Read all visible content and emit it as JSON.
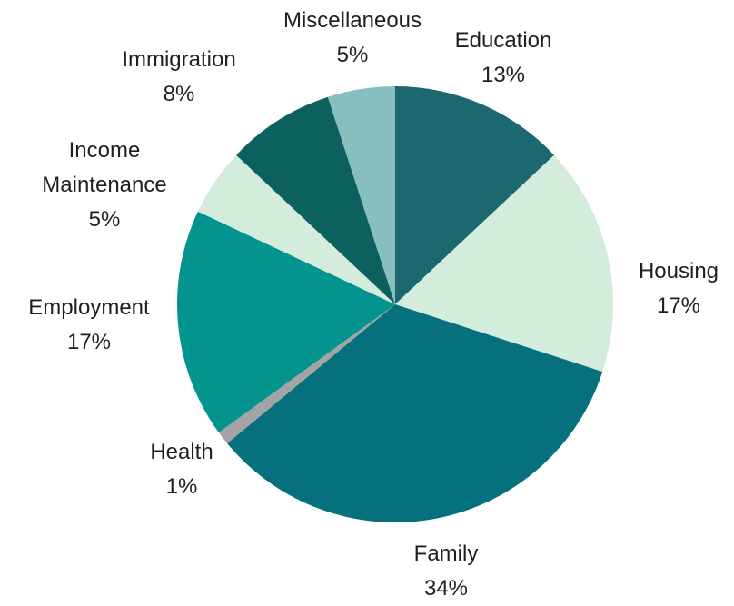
{
  "chart_data": {
    "type": "pie",
    "title": "",
    "slices": [
      {
        "label": "Education",
        "value": 13,
        "value_label": "13%",
        "color": "#1c6870"
      },
      {
        "label": "Housing",
        "value": 17,
        "value_label": "17%",
        "color": "#d3ecdc"
      },
      {
        "label": "Family",
        "value": 34,
        "value_label": "34%",
        "color": "#06717c"
      },
      {
        "label": "Health",
        "value": 1,
        "value_label": "1%",
        "color": "#a4a4a4"
      },
      {
        "label": "Employment",
        "value": 17,
        "value_label": "17%",
        "color": "#039490"
      },
      {
        "label": "Income Maintenance",
        "value": 5,
        "value_label": "5%",
        "color": "#d3ecdc"
      },
      {
        "label": "Immigration",
        "value": 8,
        "value_label": "8%",
        "color": "#0c615f"
      },
      {
        "label": "Miscellaneous",
        "value": 5,
        "value_label": "5%",
        "color": "#87bfbf"
      }
    ]
  }
}
